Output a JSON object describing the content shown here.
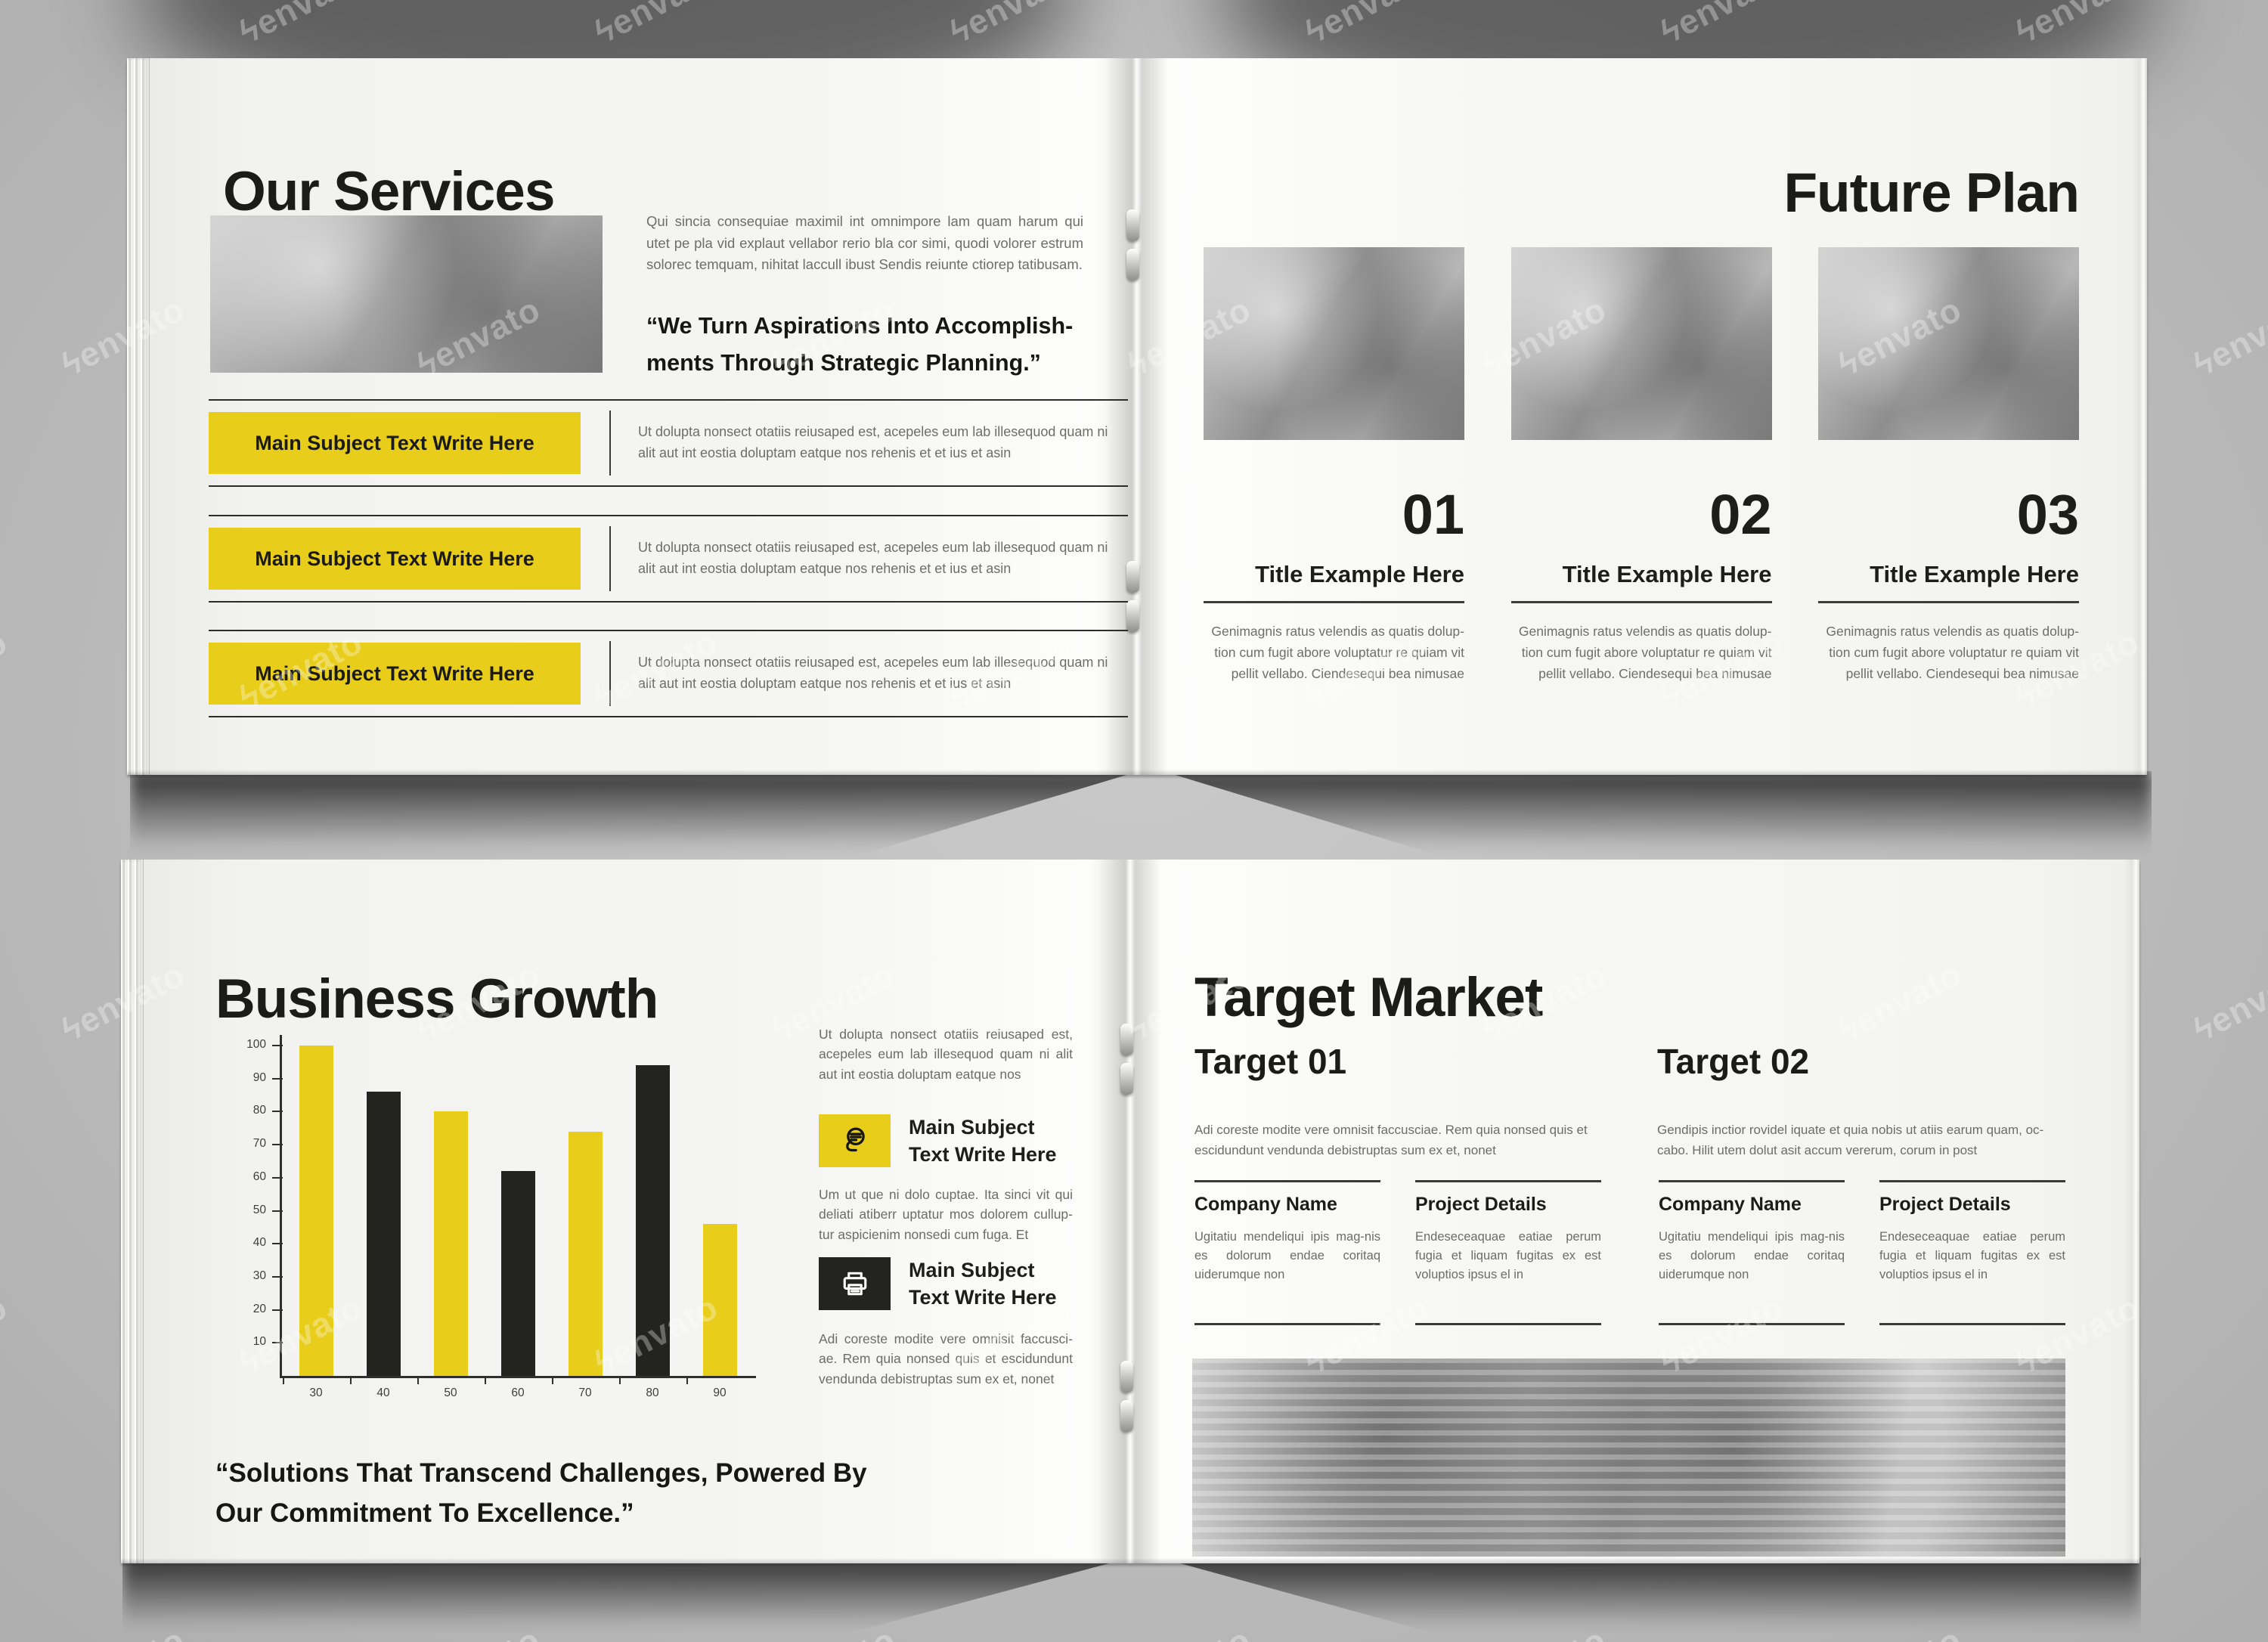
{
  "watermark": {
    "logo": "ϟ",
    "text": "envato"
  },
  "colors": {
    "accent_yellow": "#e8cd1a",
    "ink_black": "#232320",
    "body_gray": "#6d6d6b",
    "background_gray": "#bcbcbc",
    "page_white": "#f6f6f4"
  },
  "our_services": {
    "title": "Our Services",
    "photo": "teamwork-hands-photo",
    "intro": "Qui sincia consequiae maximil int omnimpore lam quam harum qui utet pe pla vid explaut vellabor rerio bla cor simi, quodi volorer estrum solorec temquam, nihitat laccull ibust Sendis reiunte ctiorep tatibusam.",
    "quote": "“We Turn Aspirations Into Accomplish-ments Through Strategic Planning.”",
    "services": [
      {
        "label": "Main Subject Text Write Here",
        "description": "Ut dolupta nonsect otatiis reiusaped est, acepeles eum lab illesequod quam ni alit aut int eostia doluptam eatque nos rehenis et et ius et asin"
      },
      {
        "label": "Main Subject Text Write Here",
        "description": "Ut dolupta nonsect otatiis reiusaped est, acepeles eum lab illesequod quam ni alit aut int eostia doluptam eatque nos rehenis et et ius et asin"
      },
      {
        "label": "Main Subject Text Write Here",
        "description": "Ut dolupta nonsect otatiis reiusaped est, acepeles eum lab illesequod quam ni alit aut int eostia doluptam eatque nos rehenis et et ius et asin"
      }
    ]
  },
  "future_plan": {
    "title": "Future Plan",
    "columns": [
      {
        "number": "01",
        "title": "Title Example Here",
        "photo": "man-sitting-with-bicycle-photo",
        "description": "Genimagnis ratus velendis as quatis dolup-tion cum fugit abore voluptatur re quiam vit pellit vellabo. Ciendesequi bea nimusae"
      },
      {
        "number": "02",
        "title": "Title Example Here",
        "photo": "woman-reading-in-cafe-photo",
        "description": "Genimagnis ratus velendis as quatis dolup-tion cum fugit abore voluptatur re quiam vit pellit vellabo. Ciendesequi bea nimusae"
      },
      {
        "number": "03",
        "title": "Title Example Here",
        "photo": "woman-writing-at-desk-photo",
        "description": "Genimagnis ratus velendis as quatis dolup-tion cum fugit abore voluptatur re quiam vit pellit vellabo. Ciendesequi bea nimusae"
      }
    ]
  },
  "business_growth": {
    "title": "Business Growth",
    "quote": "“Solutions That Transcend Challenges, Powered By Our Commitment To Excellence.”",
    "sidebar": {
      "intro": "Ut dolupta nonsect otatiis reiusaped est, acepeles eum lab illesequod quam ni alit aut int eostia doluptam eatque nos",
      "items": [
        {
          "icon": "microphone-icon",
          "title": "Main Subject Text Write Here",
          "description": "Um ut que ni dolo cuptae. Ita sinci vit qui deliati atiberr uptatur mos dolorem cullup-tur aspicienim nonsedi cum fuga. Et"
        },
        {
          "icon": "printer-icon",
          "title": "Main Subject Text Write Here",
          "description": "Adi coreste modite vere omnisit faccusci-ae. Rem quia nonsed quis et escidundunt vendunda debistruptas sum ex et, nonet"
        }
      ]
    }
  },
  "chart_data": {
    "type": "bar",
    "title": "",
    "xlabel": "",
    "ylabel": "",
    "categories": [
      "30",
      "40",
      "50",
      "60",
      "70",
      "80",
      "90"
    ],
    "values": [
      100,
      86,
      80,
      62,
      74,
      94,
      46
    ],
    "yticks": [
      10,
      20,
      30,
      40,
      50,
      60,
      70,
      80,
      90,
      100
    ],
    "ylim": [
      0,
      105
    ],
    "grid": false,
    "legend": false,
    "bar_colors": [
      "#e8cd1a",
      "#232320"
    ]
  },
  "target_market": {
    "title": "Target Market",
    "photo": "team-meeting-photo",
    "targets": [
      {
        "title": "Target 01",
        "description": "Adi coreste modite vere omnisit faccusciae. Rem quia nonsed quis et escidundunt vendunda debistruptas sum ex et, nonet"
      },
      {
        "title": "Target 02",
        "description": "Gendipis inctior rovidel iquate et quia nobis ut atiis earum quam, oc-cabo. Hilit utem dolut asit accum vererum, corum in post"
      }
    ],
    "columns": [
      {
        "header": "Company Name",
        "description": "Ugitatiu mendeliqui ipis mag-nis es dolorum endae coritaq uiderumque non"
      },
      {
        "header": "Project Details",
        "description": "Endeseceaquae eatiae perum fugia et liquam fugitas ex est voluptios ipsus el in"
      },
      {
        "header": "Company Name",
        "description": "Ugitatiu mendeliqui ipis mag-nis es dolorum endae coritaq uiderumque non"
      },
      {
        "header": "Project Details",
        "description": "Endeseceaquae eatiae perum fugia et liquam fugitas ex est voluptios ipsus el in"
      }
    ]
  }
}
